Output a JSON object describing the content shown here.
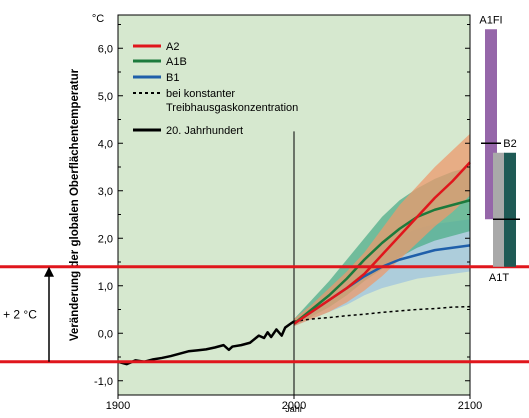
{
  "chart_data": {
    "type": "line",
    "ylabel": "Veränderung der globalen Oberflächentemperatur",
    "yunit": "°C",
    "xlabel": "Jahr",
    "xlim": [
      1900,
      2100
    ],
    "ylim": [
      -1.3,
      6.7
    ],
    "yticks": [
      -1.0,
      0.0,
      1.0,
      2.0,
      3.0,
      4.0,
      5.0,
      6.0
    ],
    "ytick_labels": [
      "-1,0",
      "0,0",
      "1,0",
      "2,0",
      "3,0",
      "4,0",
      "5,0",
      "6,0"
    ],
    "xticks": [
      1900,
      2000,
      2100
    ],
    "xtick_labels": [
      "1900",
      "2000",
      "2100"
    ],
    "grid": false,
    "legend_position": "top-left",
    "background_color": "#d6e8cf",
    "series": [
      {
        "name": "A2",
        "color": "#e0161c",
        "x": [
          2000,
          2010,
          2020,
          2030,
          2040,
          2050,
          2060,
          2070,
          2080,
          2090,
          2100
        ],
        "y": [
          0.2,
          0.45,
          0.7,
          0.95,
          1.25,
          1.65,
          2.05,
          2.45,
          2.85,
          3.2,
          3.6
        ],
        "band_low": [
          0.15,
          0.3,
          0.45,
          0.65,
          0.9,
          1.2,
          1.55,
          1.9,
          2.25,
          2.55,
          2.9
        ],
        "band_high": [
          0.3,
          0.6,
          0.95,
          1.3,
          1.7,
          2.2,
          2.7,
          3.1,
          3.5,
          3.85,
          4.2
        ],
        "band_color": "#ec9a6c"
      },
      {
        "name": "A1B",
        "color": "#1c7a3c",
        "x": [
          2000,
          2010,
          2020,
          2030,
          2040,
          2050,
          2060,
          2070,
          2080,
          2090,
          2100
        ],
        "y": [
          0.2,
          0.5,
          0.8,
          1.15,
          1.55,
          1.9,
          2.2,
          2.45,
          2.6,
          2.7,
          2.8
        ],
        "band_low": [
          0.15,
          0.35,
          0.55,
          0.8,
          1.1,
          1.35,
          1.6,
          1.8,
          1.95,
          2.05,
          2.15
        ],
        "band_high": [
          0.3,
          0.7,
          1.1,
          1.55,
          2.0,
          2.45,
          2.8,
          3.05,
          3.25,
          3.4,
          3.5
        ],
        "band_color": "#4fae8a"
      },
      {
        "name": "B1",
        "color": "#1f5faa",
        "x": [
          2000,
          2010,
          2020,
          2030,
          2040,
          2050,
          2060,
          2070,
          2080,
          2090,
          2100
        ],
        "y": [
          0.2,
          0.45,
          0.7,
          0.95,
          1.2,
          1.4,
          1.55,
          1.65,
          1.75,
          1.8,
          1.85
        ],
        "band_low": [
          0.15,
          0.3,
          0.45,
          0.6,
          0.8,
          0.95,
          1.05,
          1.15,
          1.2,
          1.25,
          1.3
        ],
        "band_high": [
          0.3,
          0.6,
          0.95,
          1.3,
          1.6,
          1.85,
          2.05,
          2.2,
          2.3,
          2.35,
          2.4
        ],
        "band_color": "#9fc4df"
      },
      {
        "name": "bei konstanter Treibhausgaskonzentration",
        "color": "#000000",
        "dashed": true,
        "x": [
          2000,
          2010,
          2020,
          2030,
          2040,
          2050,
          2060,
          2070,
          2080,
          2090,
          2100
        ],
        "y": [
          0.25,
          0.3,
          0.33,
          0.37,
          0.4,
          0.44,
          0.47,
          0.5,
          0.52,
          0.55,
          0.56
        ]
      },
      {
        "name": "20. Jahrhundert",
        "color": "#000000",
        "x": [
          1900,
          1905,
          1910,
          1915,
          1920,
          1925,
          1930,
          1935,
          1940,
          1945,
          1950,
          1955,
          1960,
          1963,
          1965,
          1970,
          1975,
          1980,
          1983,
          1985,
          1987,
          1990,
          1993,
          1995,
          1998,
          2000
        ],
        "y": [
          -0.6,
          -0.65,
          -0.57,
          -0.6,
          -0.55,
          -0.52,
          -0.48,
          -0.43,
          -0.38,
          -0.36,
          -0.34,
          -0.3,
          -0.25,
          -0.35,
          -0.28,
          -0.25,
          -0.2,
          -0.05,
          -0.1,
          0.02,
          -0.08,
          0.08,
          -0.05,
          0.12,
          0.2,
          0.25
        ]
      }
    ],
    "reference_lines": [
      {
        "y": 1.4,
        "color": "#e0161c"
      },
      {
        "y": -0.6,
        "color": "#e0161c"
      }
    ],
    "vertical_line": {
      "x": 2000,
      "color": "#000000"
    },
    "annotation_arrow": {
      "from": -0.6,
      "to": 1.4,
      "label": "+ 2 °C"
    },
    "scenario_bars": [
      {
        "name": "A1FI",
        "low": 2.4,
        "high": 6.4,
        "mid": 4.0,
        "color": "#9566a9"
      },
      {
        "name": "B2",
        "low": 1.4,
        "high": 3.8,
        "mid": 2.4,
        "color": "#a9a9a9",
        "overlay_color": "#1f5a55"
      },
      {
        "name": "A1T",
        "low": 1.4,
        "high": 3.8,
        "mid": 2.4,
        "color": "#a9a9a9"
      }
    ]
  }
}
